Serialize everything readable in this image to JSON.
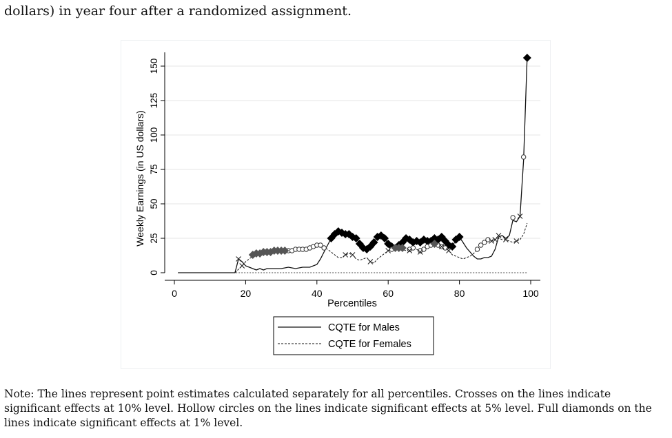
{
  "top_text": "dollars) in year four after a randomized assignment.",
  "note": "Note: The lines represent point estimates calculated separately for all percentiles. Crosses on the lines indicate significant effects at 10% level. Hollow circles on the lines indicate significant effects at 5% level. Full diamonds on the lines indicate significant effects at 1% level.",
  "colors": {
    "black_diamond": "#000000",
    "gray_diamond": "#555555",
    "line": "#111111",
    "grid": "#e6e6e6"
  },
  "chart_data": {
    "type": "line",
    "xlabel": "Percentiles",
    "ylabel": "Weekly Earnings (in US dollars)",
    "xlim": [
      0,
      100
    ],
    "ylim": [
      0,
      150
    ],
    "xticks": [
      0,
      20,
      40,
      60,
      80,
      100
    ],
    "yticks": [
      0,
      25,
      50,
      75,
      100,
      125,
      150
    ],
    "grid": true,
    "legend": {
      "position": "bottom",
      "entries": [
        "CQTE for Males",
        "CQTE for Females"
      ]
    },
    "series": [
      {
        "name": "CQTE for Males",
        "style": "solid",
        "points": [
          [
            1,
            0
          ],
          [
            17,
            0
          ],
          [
            18,
            10
          ],
          [
            19,
            8
          ],
          [
            20,
            5
          ],
          [
            21,
            4
          ],
          [
            22,
            3
          ],
          [
            23,
            2
          ],
          [
            24,
            3
          ],
          [
            25,
            2
          ],
          [
            26,
            3
          ],
          [
            28,
            3
          ],
          [
            30,
            3
          ],
          [
            32,
            4
          ],
          [
            34,
            3
          ],
          [
            36,
            4
          ],
          [
            38,
            4
          ],
          [
            40,
            6
          ],
          [
            41,
            10
          ],
          [
            42,
            15
          ],
          [
            43,
            20
          ],
          [
            44,
            25
          ],
          [
            45,
            28
          ],
          [
            46,
            30
          ],
          [
            47,
            29
          ],
          [
            48,
            28
          ],
          [
            49,
            28
          ],
          [
            50,
            26
          ],
          [
            51,
            25
          ],
          [
            52,
            21
          ],
          [
            53,
            18
          ],
          [
            54,
            17
          ],
          [
            55,
            19
          ],
          [
            56,
            22
          ],
          [
            57,
            26
          ],
          [
            58,
            27
          ],
          [
            59,
            25
          ],
          [
            60,
            21
          ],
          [
            61,
            19
          ],
          [
            62,
            18
          ],
          [
            63,
            20
          ],
          [
            64,
            22
          ],
          [
            65,
            25
          ],
          [
            66,
            24
          ],
          [
            67,
            22
          ],
          [
            68,
            23
          ],
          [
            69,
            22
          ],
          [
            70,
            24
          ],
          [
            71,
            23
          ],
          [
            72,
            23
          ],
          [
            73,
            25
          ],
          [
            74,
            24
          ],
          [
            75,
            26
          ],
          [
            76,
            23
          ],
          [
            77,
            20
          ],
          [
            78,
            19
          ],
          [
            79,
            24
          ],
          [
            80,
            26
          ],
          [
            81,
            22
          ],
          [
            82,
            18
          ],
          [
            83,
            15
          ],
          [
            84,
            12
          ],
          [
            85,
            10
          ],
          [
            86,
            10
          ],
          [
            87,
            11
          ],
          [
            88,
            11
          ],
          [
            89,
            12
          ],
          [
            90,
            17
          ],
          [
            91,
            26
          ],
          [
            92,
            27
          ],
          [
            93,
            25
          ],
          [
            94,
            27
          ],
          [
            95,
            38
          ],
          [
            96,
            37
          ],
          [
            97,
            41
          ],
          [
            98,
            82
          ],
          [
            99,
            156
          ]
        ],
        "markers": {
          "cross": [
            [
              18,
              10
            ],
            [
              91,
              27
            ],
            [
              97,
              41
            ]
          ],
          "hollow_circle": [
            [
              98,
              84
            ],
            [
              95,
              40
            ]
          ],
          "full_diamond": [
            [
              44,
              25
            ],
            [
              45,
              28
            ],
            [
              46,
              30
            ],
            [
              47,
              29
            ],
            [
              48,
              28
            ],
            [
              49,
              28
            ],
            [
              50,
              26
            ],
            [
              51,
              25
            ],
            [
              52,
              21
            ],
            [
              53,
              18
            ],
            [
              54,
              17
            ],
            [
              55,
              19
            ],
            [
              56,
              22
            ],
            [
              57,
              26
            ],
            [
              58,
              27
            ],
            [
              59,
              25
            ],
            [
              60,
              21
            ],
            [
              61,
              19
            ],
            [
              63,
              20
            ],
            [
              64,
              22
            ],
            [
              65,
              25
            ],
            [
              66,
              24
            ],
            [
              67,
              22
            ],
            [
              68,
              23
            ],
            [
              69,
              22
            ],
            [
              70,
              24
            ],
            [
              71,
              23
            ],
            [
              72,
              23
            ],
            [
              73,
              25
            ],
            [
              74,
              24
            ],
            [
              75,
              26
            ],
            [
              76,
              23
            ],
            [
              77,
              20
            ],
            [
              78,
              19
            ],
            [
              79,
              24
            ],
            [
              80,
              26
            ],
            [
              99,
              156
            ]
          ]
        }
      },
      {
        "name": "CQTE for Females",
        "style": "dashed",
        "points": [
          [
            17,
            0
          ],
          [
            19,
            5
          ],
          [
            20,
            8
          ],
          [
            22,
            12
          ],
          [
            24,
            14
          ],
          [
            26,
            15
          ],
          [
            28,
            16
          ],
          [
            30,
            16
          ],
          [
            32,
            16
          ],
          [
            34,
            17
          ],
          [
            36,
            17
          ],
          [
            38,
            18
          ],
          [
            40,
            20
          ],
          [
            41,
            20
          ],
          [
            42,
            18
          ],
          [
            43,
            17
          ],
          [
            44,
            15
          ],
          [
            45,
            13
          ],
          [
            46,
            11
          ],
          [
            47,
            11
          ],
          [
            48,
            13
          ],
          [
            49,
            14
          ],
          [
            50,
            13
          ],
          [
            51,
            10
          ],
          [
            52,
            9
          ],
          [
            53,
            10
          ],
          [
            54,
            11
          ],
          [
            55,
            8
          ],
          [
            56,
            7
          ],
          [
            57,
            10
          ],
          [
            58,
            12
          ],
          [
            59,
            14
          ],
          [
            60,
            16
          ],
          [
            61,
            17
          ],
          [
            62,
            18
          ],
          [
            63,
            18
          ],
          [
            64,
            17
          ],
          [
            65,
            16
          ],
          [
            66,
            16
          ],
          [
            67,
            18
          ],
          [
            68,
            17
          ],
          [
            69,
            15
          ],
          [
            70,
            17
          ],
          [
            71,
            19
          ],
          [
            72,
            20
          ],
          [
            73,
            21
          ],
          [
            74,
            20
          ],
          [
            75,
            19
          ],
          [
            76,
            18
          ],
          [
            77,
            16
          ],
          [
            78,
            13
          ],
          [
            79,
            12
          ],
          [
            80,
            11
          ],
          [
            81,
            10
          ],
          [
            82,
            11
          ],
          [
            83,
            12
          ],
          [
            84,
            14
          ],
          [
            85,
            17
          ],
          [
            86,
            20
          ],
          [
            87,
            22
          ],
          [
            88,
            24
          ],
          [
            89,
            23
          ],
          [
            90,
            24
          ],
          [
            91,
            25
          ],
          [
            92,
            24
          ],
          [
            93,
            24
          ],
          [
            94,
            23
          ],
          [
            95,
            22
          ],
          [
            96,
            23
          ],
          [
            97,
            24
          ],
          [
            98,
            28
          ],
          [
            99,
            36
          ]
        ],
        "markers": {
          "cross": [
            [
              19,
              5
            ],
            [
              48,
              13
            ],
            [
              50,
              13
            ],
            [
              55,
              8
            ],
            [
              60,
              16
            ],
            [
              66,
              16
            ],
            [
              69,
              15
            ],
            [
              75,
              19
            ],
            [
              77,
              16
            ],
            [
              89,
              23
            ],
            [
              90,
              24
            ],
            [
              93,
              24
            ],
            [
              96,
              23
            ]
          ],
          "hollow_circle": [
            [
              32,
              16
            ],
            [
              33,
              16
            ],
            [
              34,
              17
            ],
            [
              35,
              17
            ],
            [
              36,
              17
            ],
            [
              37,
              17
            ],
            [
              38,
              18
            ],
            [
              39,
              19
            ],
            [
              40,
              20
            ],
            [
              41,
              20
            ],
            [
              42,
              18
            ],
            [
              61,
              17
            ],
            [
              62,
              18
            ],
            [
              66,
              17
            ],
            [
              67,
              18
            ],
            [
              69,
              16
            ],
            [
              70,
              17
            ],
            [
              71,
              19
            ],
            [
              72,
              20
            ],
            [
              74,
              20
            ],
            [
              75,
              19
            ],
            [
              76,
              18
            ],
            [
              85,
              17
            ],
            [
              86,
              20
            ],
            [
              87,
              22
            ],
            [
              88,
              24
            ]
          ],
          "full_diamond": [
            [
              22,
              13
            ],
            [
              23,
              14
            ],
            [
              24,
              14
            ],
            [
              25,
              15
            ],
            [
              26,
              15
            ],
            [
              27,
              15
            ],
            [
              28,
              16
            ],
            [
              29,
              16
            ],
            [
              30,
              16
            ],
            [
              31,
              16
            ],
            [
              62,
              18
            ],
            [
              63,
              18
            ],
            [
              64,
              18
            ],
            [
              73,
              21
            ]
          ]
        }
      }
    ]
  }
}
